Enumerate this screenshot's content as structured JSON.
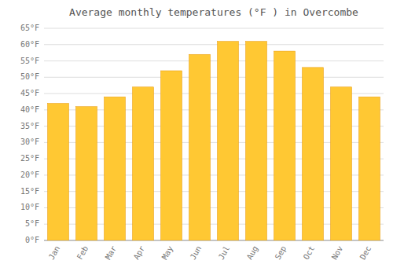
{
  "chart_data": {
    "type": "bar",
    "title": "Average monthly temperatures (°F ) in Overcombe",
    "categories": [
      "Jan",
      "Feb",
      "Mar",
      "Apr",
      "May",
      "Jun",
      "Jul",
      "Aug",
      "Sep",
      "Oct",
      "Nov",
      "Dec"
    ],
    "values": [
      42,
      41,
      44,
      47,
      52,
      57,
      61,
      61,
      58,
      53,
      47,
      44
    ],
    "color": "#FFC833",
    "ylim": [
      0,
      65
    ],
    "yticks": [
      {
        "value": 0,
        "label": "0°F"
      },
      {
        "value": 5,
        "label": "5°F"
      },
      {
        "value": 10,
        "label": "10°F"
      },
      {
        "value": 15,
        "label": "15°F"
      },
      {
        "value": 20,
        "label": "20°F"
      },
      {
        "value": 25,
        "label": "25°F"
      },
      {
        "value": 30,
        "label": "30°F"
      },
      {
        "value": 35,
        "label": "35°F"
      },
      {
        "value": 40,
        "label": "40°F"
      },
      {
        "value": 45,
        "label": "45°F"
      },
      {
        "value": 50,
        "label": "50°F"
      },
      {
        "value": 55,
        "label": "55°F"
      },
      {
        "value": 60,
        "label": "60°F"
      },
      {
        "value": 65,
        "label": "65°F"
      }
    ],
    "grid": true
  }
}
